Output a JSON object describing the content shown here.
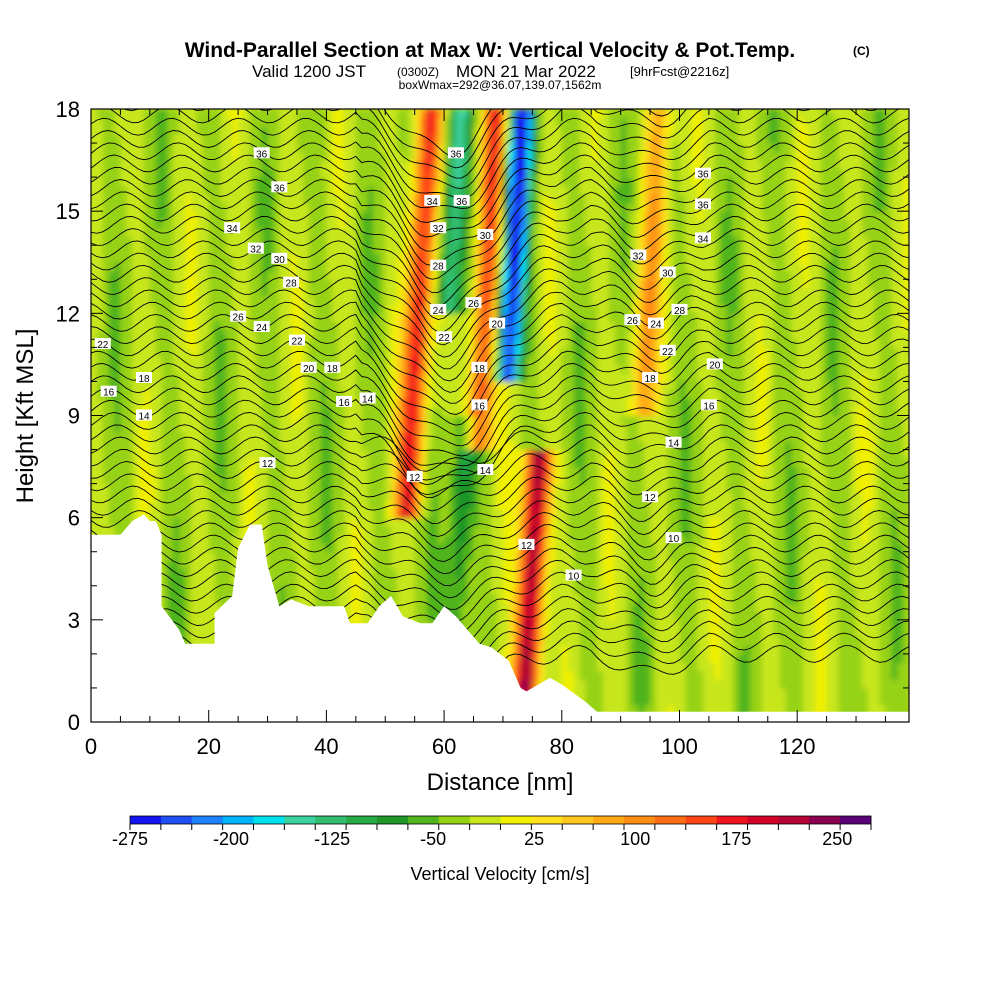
{
  "header": {
    "title": "Wind-Parallel Section at Max W: Vertical Velocity & Pot.Temp.",
    "title_mark": "(C)",
    "valid_prefix": "Valid 1200 JST",
    "valid_utc": "(0300Z)",
    "valid_date": "MON 21 Mar 2022",
    "forecast": "[9hrFcst@2216z]",
    "box_info": "boxWmax=292@36.07,139.07,1562m"
  },
  "chart_data": {
    "type": "heatmap",
    "xlabel": "Distance [nm]",
    "ylabel": "Height [Kft MSL]",
    "xlim": [
      0,
      139
    ],
    "ylim": [
      0,
      18
    ],
    "x_ticks": [
      "0",
      "20",
      "40",
      "60",
      "80",
      "100",
      "120"
    ],
    "y_ticks": [
      "0",
      "3",
      "6",
      "9",
      "12",
      "15",
      "18"
    ],
    "colorbar": {
      "label": "Vertical Velocity [cm/s]",
      "min": -275,
      "max": 275,
      "step": 25,
      "tick_labels": [
        "-275",
        "-200",
        "-125",
        "-50",
        "25",
        "100",
        "175",
        "250"
      ],
      "colors": [
        "#1414f0",
        "#1e50f5",
        "#1e82ff",
        "#00b4ff",
        "#00e1f0",
        "#3cd2a0",
        "#32be6e",
        "#28aa46",
        "#1e9628",
        "#50b41e",
        "#96d214",
        "#c8e61e",
        "#f0f000",
        "#ffe11e",
        "#ffc81e",
        "#ffaa14",
        "#ff8c14",
        "#ff6e14",
        "#ff4614",
        "#f0141e",
        "#d20028",
        "#b40032",
        "#8c0050",
        "#5a0078"
      ]
    },
    "velocity_features": [
      {
        "x": 54,
        "ylim": [
          7,
          18
        ],
        "w": 210,
        "note": "updraft band"
      },
      {
        "x": 66,
        "ylim": [
          9,
          18
        ],
        "w": 200,
        "note": "updraft band"
      },
      {
        "x": 61,
        "ylim": [
          13,
          18
        ],
        "w": -140,
        "note": "downdraft"
      },
      {
        "x": 71,
        "ylim": [
          11,
          18
        ],
        "w": -260,
        "note": "downdraft"
      },
      {
        "x": 74,
        "ylim": [
          1.5,
          8
        ],
        "w": 292,
        "note": "max updraft"
      },
      {
        "x": 62,
        "ylim": [
          3,
          9
        ],
        "w": -75,
        "note": "downdraft"
      },
      {
        "x": 94,
        "ylim": [
          10,
          18
        ],
        "w": 110,
        "note": "updraft"
      }
    ],
    "theta_contour_labels": [
      {
        "text": "36",
        "x": 29,
        "y": 16.7
      },
      {
        "text": "36",
        "x": 32,
        "y": 15.7
      },
      {
        "text": "36",
        "x": 62,
        "y": 16.7
      },
      {
        "text": "36",
        "x": 63,
        "y": 15.3
      },
      {
        "text": "36",
        "x": 104,
        "y": 16.1
      },
      {
        "text": "36",
        "x": 104,
        "y": 15.2
      },
      {
        "text": "34",
        "x": 24,
        "y": 14.5
      },
      {
        "text": "34",
        "x": 58,
        "y": 15.3
      },
      {
        "text": "34",
        "x": 104,
        "y": 14.2
      },
      {
        "text": "32",
        "x": 28,
        "y": 13.9
      },
      {
        "text": "32",
        "x": 59,
        "y": 14.5
      },
      {
        "text": "32",
        "x": 93,
        "y": 13.7
      },
      {
        "text": "30",
        "x": 32,
        "y": 13.6
      },
      {
        "text": "30",
        "x": 67,
        "y": 14.3
      },
      {
        "text": "30",
        "x": 98,
        "y": 13.2
      },
      {
        "text": "28",
        "x": 34,
        "y": 12.9
      },
      {
        "text": "28",
        "x": 59,
        "y": 13.4
      },
      {
        "text": "28",
        "x": 100,
        "y": 12.1
      },
      {
        "text": "26",
        "x": 25,
        "y": 11.9
      },
      {
        "text": "26",
        "x": 65,
        "y": 12.3
      },
      {
        "text": "26",
        "x": 92,
        "y": 11.8
      },
      {
        "text": "24",
        "x": 29,
        "y": 11.6
      },
      {
        "text": "24",
        "x": 59,
        "y": 12.1
      },
      {
        "text": "24",
        "x": 96,
        "y": 11.7
      },
      {
        "text": "22",
        "x": 2,
        "y": 11.1
      },
      {
        "text": "22",
        "x": 35,
        "y": 11.2
      },
      {
        "text": "22",
        "x": 60,
        "y": 11.3
      },
      {
        "text": "22",
        "x": 98,
        "y": 10.9
      },
      {
        "text": "20",
        "x": 37,
        "y": 10.4
      },
      {
        "text": "20",
        "x": 69,
        "y": 11.7
      },
      {
        "text": "20",
        "x": 106,
        "y": 10.5
      },
      {
        "text": "18",
        "x": 9,
        "y": 10.1
      },
      {
        "text": "18",
        "x": 41,
        "y": 10.4
      },
      {
        "text": "18",
        "x": 66,
        "y": 10.4
      },
      {
        "text": "18",
        "x": 95,
        "y": 10.1
      },
      {
        "text": "16",
        "x": 3,
        "y": 9.7
      },
      {
        "text": "16",
        "x": 43,
        "y": 9.4
      },
      {
        "text": "16",
        "x": 66,
        "y": 9.3
      },
      {
        "text": "16",
        "x": 105,
        "y": 9.3
      },
      {
        "text": "14",
        "x": 9,
        "y": 9.0
      },
      {
        "text": "14",
        "x": 47,
        "y": 9.5
      },
      {
        "text": "14",
        "x": 67,
        "y": 7.4
      },
      {
        "text": "14",
        "x": 99,
        "y": 8.2
      },
      {
        "text": "12",
        "x": 30,
        "y": 7.6
      },
      {
        "text": "12",
        "x": 55,
        "y": 7.2
      },
      {
        "text": "12",
        "x": 95,
        "y": 6.6
      },
      {
        "text": "12",
        "x": 74,
        "y": 5.2
      },
      {
        "text": "10",
        "x": 82,
        "y": 4.3
      },
      {
        "text": "10",
        "x": 99,
        "y": 5.4
      }
    ]
  }
}
